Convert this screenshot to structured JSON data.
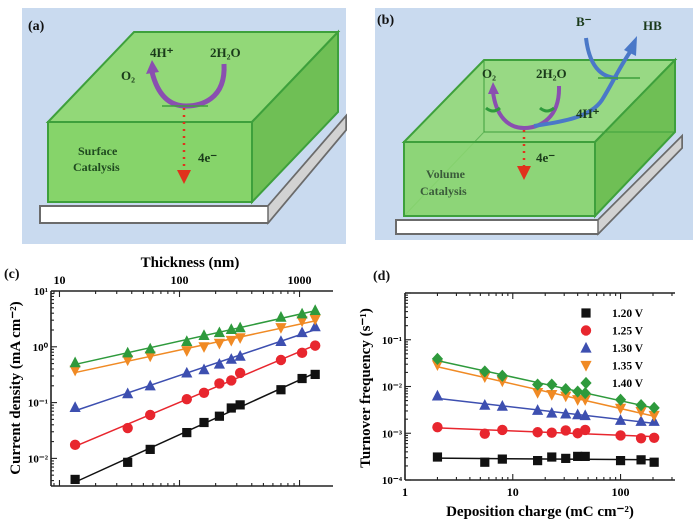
{
  "figure": {
    "panels": {
      "a": {
        "tag": "(a)",
        "species_top_left": "4H⁺",
        "species_top_right": "2H₂O",
        "product": "O₂",
        "electrons": "4e⁻",
        "caption_line1": "Surface",
        "caption_line2": "Catalysis"
      },
      "b": {
        "tag": "(b)",
        "base": "B⁻",
        "acid": "HB",
        "product": "O₂",
        "reactant": "2H₂O",
        "protons": "4H⁺",
        "electrons": "4e⁻",
        "caption_line1": "Volume",
        "caption_line2": "Catalysis"
      }
    },
    "colors": {
      "background_panel": "#c9daef",
      "film_front": "#86d46a",
      "film_top": "#92d878",
      "film_side": "#6fbf55",
      "film_edge": "#3ea03c",
      "substrate": "#ffffff",
      "substrate_edge": "#6b6b6b",
      "oxygen_arrow": "#8a4fb0",
      "electron_arrow": "#e0321c",
      "base_arrow": "#4a78c8"
    }
  },
  "chart_data": [
    {
      "id": "c",
      "tag": "(c)",
      "type": "line",
      "top_xlabel": "Thickness (nm)",
      "ylabel": "Current density (mA cm⁻²)",
      "xscale": "log",
      "yscale": "log",
      "xlim": [
        8.5,
        1900
      ],
      "ylim": [
        0.0032,
        10
      ],
      "xticks": [
        10,
        100,
        1000
      ],
      "xtick_labels": [
        "10",
        "100",
        "1000"
      ],
      "yticks": [
        10,
        1,
        0.1,
        0.01
      ],
      "ytick_labels": [
        "10¹",
        "10⁰",
        "10⁻¹",
        "10⁻²"
      ],
      "legend": "none",
      "x": [
        13.5,
        37,
        57,
        115,
        160,
        215,
        270,
        320,
        700,
        1050,
        1350
      ],
      "series": [
        {
          "name": "1.20 V",
          "marker": "square",
          "color": "#111111",
          "values": [
            0.0042,
            0.0085,
            0.0145,
            0.029,
            0.044,
            0.057,
            0.08,
            0.091,
            0.17,
            0.27,
            0.32
          ]
        },
        {
          "name": "1.25 V",
          "marker": "circle",
          "color": "#e8262e",
          "values": [
            0.0175,
            0.035,
            0.06,
            0.115,
            0.15,
            0.22,
            0.25,
            0.34,
            0.58,
            0.78,
            1.05
          ]
        },
        {
          "name": "1.30 V",
          "marker": "triangle-up",
          "color": "#3d4fb0",
          "values": [
            0.082,
            0.145,
            0.2,
            0.34,
            0.39,
            0.49,
            0.6,
            0.68,
            1.25,
            1.8,
            2.3
          ]
        },
        {
          "name": "1.35 V",
          "marker": "triangle-down",
          "color": "#f08a24",
          "values": [
            0.38,
            0.58,
            0.68,
            0.85,
            1.0,
            1.15,
            1.3,
            1.45,
            2.2,
            2.9,
            3.1
          ]
        },
        {
          "name": "1.40 V",
          "marker": "triangle-up",
          "color": "#2e9a3c",
          "values": [
            0.52,
            0.78,
            0.92,
            1.25,
            1.6,
            1.8,
            2.05,
            2.2,
            3.4,
            3.9,
            4.5
          ]
        }
      ]
    },
    {
      "id": "d",
      "tag": "(d)",
      "type": "line",
      "xlabel": "Deposition charge (mC cm⁻²)",
      "ylabel": "Turnover frequency (s⁻¹)",
      "xscale": "log",
      "yscale": "log",
      "xlim": [
        1,
        320
      ],
      "ylim": [
        0.0001,
        1
      ],
      "xticks": [
        1,
        10,
        100
      ],
      "xtick_labels": [
        "1",
        "10",
        "100"
      ],
      "yticks": [
        0.1,
        0.01,
        0.001,
        0.0001
      ],
      "ytick_labels": [
        "10⁻¹",
        "10⁻²",
        "10⁻³",
        "10⁻⁴"
      ],
      "legend": "top-right",
      "x": [
        2.0,
        5.5,
        8.0,
        17,
        23,
        31,
        40,
        47,
        100,
        155,
        205
      ],
      "series": [
        {
          "name": "1.20 V",
          "marker": "square",
          "color": "#111111",
          "values": [
            0.00031,
            0.00024,
            0.00028,
            0.00026,
            0.00031,
            0.00029,
            0.00032,
            0.00032,
            0.00026,
            0.00027,
            0.00024
          ]
        },
        {
          "name": "1.25 V",
          "marker": "circle",
          "color": "#e8262e",
          "values": [
            0.00135,
            0.00098,
            0.00118,
            0.00105,
            0.00103,
            0.00115,
            0.001,
            0.00118,
            0.0009,
            0.00078,
            0.0008
          ]
        },
        {
          "name": "1.30 V",
          "marker": "triangle-up",
          "color": "#3d4fb0",
          "values": [
            0.0063,
            0.004,
            0.0038,
            0.0031,
            0.0027,
            0.0026,
            0.0025,
            0.0024,
            0.0019,
            0.0018,
            0.0018
          ]
        },
        {
          "name": "1.35 V",
          "marker": "triangle-down",
          "color": "#f08a24",
          "values": [
            0.029,
            0.016,
            0.013,
            0.0074,
            0.0067,
            0.0062,
            0.0052,
            0.0052,
            0.0034,
            0.0029,
            0.0024
          ]
        },
        {
          "name": "1.40 V",
          "marker": "diamond",
          "color": "#2e9a3c",
          "values": [
            0.039,
            0.021,
            0.017,
            0.011,
            0.011,
            0.0088,
            0.0078,
            0.0072,
            0.0052,
            0.004,
            0.0035
          ]
        }
      ]
    }
  ]
}
